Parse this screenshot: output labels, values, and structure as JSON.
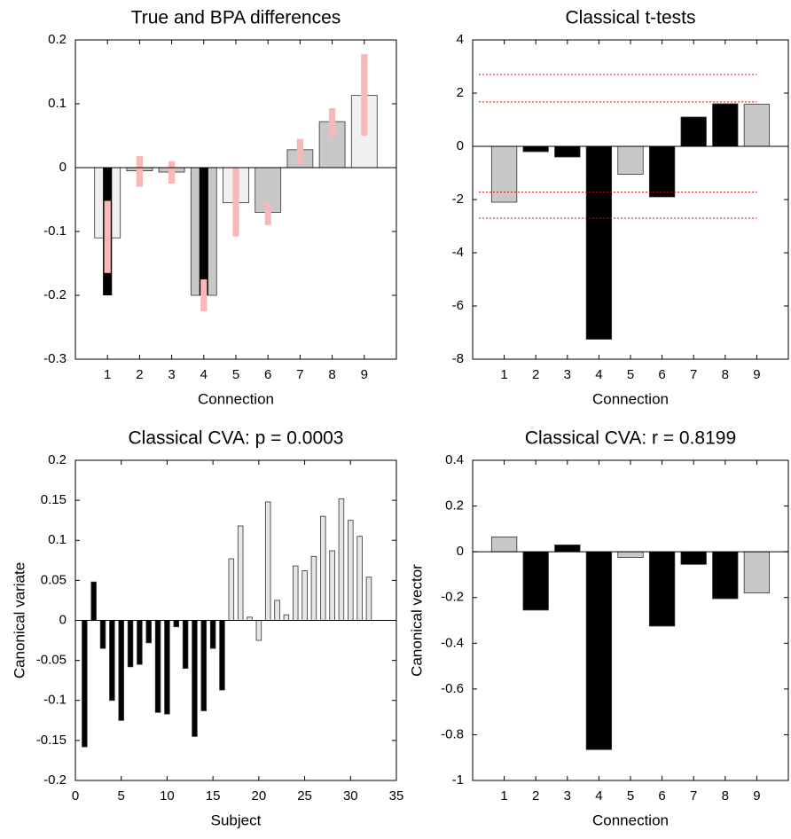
{
  "chart_data": [
    {
      "type": "bar",
      "title": "True and BPA differences",
      "xlabel": "Connection",
      "categories": [
        1,
        2,
        3,
        4,
        5,
        6,
        7,
        8,
        9
      ],
      "values": [
        -0.11,
        -0.005,
        -0.007,
        -0.2,
        -0.055,
        -0.07,
        0.028,
        0.072,
        0.113
      ],
      "colors": [
        "#f0f0f0",
        "#c8c8c8",
        "#c8c8c8",
        "#c8c8c8",
        "#f0f0f0",
        "#c8c8c8",
        "#c8c8c8",
        "#c8c8c8",
        "#f0f0f0"
      ],
      "overlay_values": [
        -0.2,
        null,
        null,
        -0.2,
        null,
        null,
        null,
        null,
        null
      ],
      "overlay_color": "#000000",
      "intervals": {
        "low": [
          -0.165,
          -0.03,
          -0.025,
          -0.225,
          -0.108,
          -0.09,
          0.005,
          0.048,
          0.05
        ],
        "high": [
          -0.052,
          0.018,
          0.01,
          -0.175,
          0,
          -0.055,
          0.045,
          0.093,
          0.178
        ]
      },
      "interval_color": "#f8b8b8",
      "ylim": [
        -0.3,
        0.2
      ],
      "yticks": [
        -0.3,
        -0.2,
        -0.1,
        0,
        0.1,
        0.2
      ]
    },
    {
      "type": "bar",
      "title": "Classical t-tests",
      "xlabel": "Connection",
      "categories": [
        1,
        2,
        3,
        4,
        5,
        6,
        7,
        8,
        9
      ],
      "values": [
        -2.1,
        -0.2,
        -0.4,
        -7.25,
        -1.05,
        -1.9,
        1.1,
        1.6,
        1.58
      ],
      "colors": [
        "#c8c8c8",
        "#000000",
        "#000000",
        "#000000",
        "#c8c8c8",
        "#000000",
        "#000000",
        "#000000",
        "#c8c8c8"
      ],
      "thresholds": [
        2.7,
        1.67,
        -1.72,
        -2.7
      ],
      "threshold_color": "#e00000",
      "ylim": [
        -8,
        4
      ],
      "yticks": [
        -8,
        -6,
        -4,
        -2,
        0,
        2,
        4
      ]
    },
    {
      "type": "bar",
      "title": "Classical CVA: p = 0.0003",
      "xlabel": "Subject",
      "ylabel": "Canonical variate",
      "x": [
        1,
        2,
        3,
        4,
        5,
        6,
        7,
        8,
        9,
        10,
        11,
        12,
        13,
        14,
        15,
        16,
        17,
        18,
        19,
        20,
        21,
        22,
        23,
        24,
        25,
        26,
        27,
        28,
        29,
        30,
        31,
        32
      ],
      "values": [
        -0.158,
        0.048,
        -0.035,
        -0.1,
        -0.125,
        -0.058,
        -0.055,
        -0.028,
        -0.115,
        -0.117,
        -0.008,
        -0.06,
        -0.145,
        -0.113,
        -0.035,
        -0.087,
        0.077,
        0.118,
        0.004,
        -0.025,
        0.148,
        0.025,
        0.007,
        0.068,
        0.062,
        0.08,
        0.13,
        0.087,
        0.152,
        0.125,
        0.105,
        0.054
      ],
      "colors": [
        "#000000",
        "#000000",
        "#000000",
        "#000000",
        "#000000",
        "#000000",
        "#000000",
        "#000000",
        "#000000",
        "#000000",
        "#000000",
        "#000000",
        "#000000",
        "#000000",
        "#000000",
        "#000000",
        "#e6e6e6",
        "#e6e6e6",
        "#e6e6e6",
        "#e6e6e6",
        "#e6e6e6",
        "#e6e6e6",
        "#e6e6e6",
        "#e6e6e6",
        "#e6e6e6",
        "#e6e6e6",
        "#e6e6e6",
        "#e6e6e6",
        "#e6e6e6",
        "#e6e6e6",
        "#e6e6e6",
        "#e6e6e6"
      ],
      "xlim": [
        0,
        35
      ],
      "xticks": [
        0,
        5,
        10,
        15,
        20,
        25,
        30,
        35
      ],
      "ylim": [
        -0.2,
        0.2
      ],
      "yticks": [
        -0.2,
        -0.15,
        -0.1,
        -0.05,
        0,
        0.05,
        0.1,
        0.15,
        0.2
      ]
    },
    {
      "type": "bar",
      "title": "Classical CVA: r = 0.8199",
      "xlabel": "Connection",
      "ylabel": "Canonical vector",
      "categories": [
        1,
        2,
        3,
        4,
        5,
        6,
        7,
        8,
        9
      ],
      "values": [
        0.065,
        -0.255,
        0.03,
        -0.865,
        -0.025,
        -0.325,
        -0.055,
        -0.205,
        -0.18
      ],
      "colors": [
        "#c8c8c8",
        "#000000",
        "#000000",
        "#000000",
        "#c8c8c8",
        "#000000",
        "#000000",
        "#000000",
        "#c8c8c8"
      ],
      "ylim": [
        -1,
        0.4
      ],
      "yticks": [
        -1,
        -0.8,
        -0.6,
        -0.4,
        -0.2,
        0,
        0.2,
        0.4
      ]
    }
  ]
}
